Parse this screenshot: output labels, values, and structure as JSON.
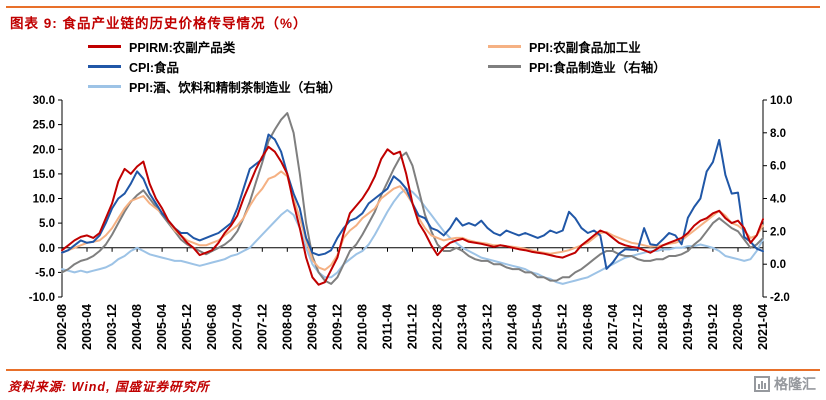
{
  "header": {
    "title": "图表 9: 食品产业链的历史价格传导情况（%）"
  },
  "footer": {
    "source": "资料来源: Wind, 国盛证券研究所",
    "logo_text": "格隆汇"
  },
  "colors": {
    "accent_rule": "#e8702a",
    "title_red": "#c00000",
    "logo_gray": "#96999e"
  },
  "chart_data": {
    "type": "line",
    "title": "图表 9: 食品产业链的历史价格传导情况（%）",
    "legend_position": "top",
    "grid": "off",
    "x_start": "2002-08",
    "x_end": "2021-04",
    "x_step_months": 2,
    "x_tick_labels": [
      "2002-08",
      "2003-04",
      "2003-12",
      "2004-08",
      "2005-04",
      "2005-12",
      "2006-08",
      "2007-04",
      "2007-12",
      "2008-08",
      "2009-04",
      "2009-12",
      "2010-08",
      "2011-04",
      "2011-12",
      "2012-08",
      "2013-04",
      "2013-12",
      "2014-08",
      "2015-04",
      "2015-12",
      "2016-08",
      "2017-04",
      "2017-12",
      "2018-08",
      "2019-04",
      "2019-12",
      "2020-08",
      "2021-04"
    ],
    "left_axis": {
      "min": -10,
      "max": 30,
      "ticks": [
        "30.0",
        "25.0",
        "20.0",
        "15.0",
        "10.0",
        "5.0",
        "0.0",
        "-5.0",
        "-10.0"
      ]
    },
    "right_axis": {
      "min": -2,
      "max": 10,
      "ticks": [
        "10.0",
        "8.0",
        "6.0",
        "4.0",
        "2.0",
        "0.0",
        "-2.0"
      ]
    },
    "series": [
      {
        "name": "PPIRM:农副产品类",
        "axis": "left",
        "color": "#c00000",
        "values": [
          -0.5,
          0.5,
          1.5,
          2.2,
          2.5,
          2.0,
          3.0,
          6.0,
          9.0,
          13.5,
          16.0,
          15.0,
          16.5,
          17.5,
          13.0,
          10.0,
          8.0,
          5.5,
          4.0,
          2.5,
          1.0,
          0.0,
          -1.5,
          -1.0,
          -0.5,
          1.0,
          3.0,
          4.5,
          6.5,
          10.0,
          13.0,
          16.0,
          18.5,
          20.5,
          19.5,
          17.5,
          15.0,
          9.0,
          4.0,
          -2.0,
          -6.0,
          -7.5,
          -7.0,
          -4.5,
          -2.0,
          3.0,
          7.0,
          8.5,
          10.0,
          12.0,
          14.5,
          18.0,
          20.0,
          19.0,
          19.5,
          15.0,
          9.0,
          5.0,
          3.0,
          0.5,
          -1.5,
          0.0,
          1.0,
          1.5,
          1.8,
          1.2,
          1.0,
          0.8,
          0.5,
          0.2,
          0.5,
          0.3,
          0.0,
          -0.3,
          -0.5,
          -0.8,
          -1.0,
          -1.2,
          -1.5,
          -1.8,
          -2.0,
          -1.5,
          -1.0,
          0.5,
          1.5,
          2.5,
          3.5,
          3.0,
          2.0,
          1.0,
          0.5,
          0.2,
          0.0,
          -0.5,
          -1.0,
          -0.3,
          0.5,
          1.0,
          1.5,
          2.0,
          3.0,
          4.5,
          5.5,
          6.0,
          7.0,
          7.5,
          6.0,
          5.0,
          5.5,
          4.0,
          1.0,
          2.5,
          5.8
        ]
      },
      {
        "name": "PPI:农副食品加工业",
        "axis": "left",
        "color": "#f5b183",
        "values": [
          -1.0,
          -0.5,
          0.0,
          0.5,
          1.0,
          1.2,
          1.5,
          2.5,
          4.0,
          6.0,
          8.0,
          9.5,
          10.0,
          10.5,
          9.0,
          8.0,
          7.0,
          5.5,
          3.5,
          2.5,
          1.5,
          1.0,
          0.5,
          0.5,
          1.0,
          1.5,
          2.5,
          3.5,
          4.5,
          6.0,
          8.5,
          10.5,
          12.0,
          14.0,
          14.5,
          15.5,
          14.5,
          10.0,
          6.0,
          1.5,
          -2.5,
          -4.0,
          -4.5,
          -3.5,
          -1.5,
          2.0,
          3.5,
          4.5,
          6.0,
          7.0,
          8.0,
          10.0,
          11.0,
          12.0,
          12.5,
          11.0,
          9.0,
          6.0,
          4.0,
          2.5,
          2.0,
          1.5,
          1.8,
          2.0,
          2.0,
          1.5,
          1.2,
          1.0,
          0.8,
          0.5,
          0.5,
          0.3,
          0.2,
          0.0,
          -0.2,
          -0.5,
          -0.8,
          -1.0,
          -1.2,
          -1.0,
          -0.8,
          -0.5,
          0.0,
          0.5,
          1.0,
          2.0,
          3.0,
          3.2,
          2.5,
          2.0,
          1.5,
          1.0,
          0.8,
          0.5,
          0.2,
          0.3,
          0.5,
          0.8,
          1.0,
          1.5,
          2.5,
          3.5,
          4.5,
          5.5,
          6.5,
          7.5,
          6.5,
          5.0,
          4.5,
          3.5,
          2.0,
          2.5,
          4.5
        ]
      },
      {
        "name": "CPI:食品",
        "axis": "left",
        "color": "#2057a7",
        "values": [
          -1.0,
          -0.5,
          0.5,
          1.5,
          1.0,
          1.2,
          2.5,
          5.0,
          8.0,
          10.0,
          11.0,
          13.0,
          15.5,
          14.0,
          11.0,
          9.0,
          7.0,
          5.5,
          4.0,
          3.0,
          3.0,
          2.0,
          1.5,
          2.0,
          2.5,
          3.0,
          4.0,
          5.0,
          8.0,
          12.0,
          16.0,
          17.0,
          18.0,
          23.0,
          22.0,
          19.5,
          15.0,
          11.0,
          8.0,
          2.0,
          -1.0,
          -1.5,
          -1.2,
          -0.5,
          2.0,
          4.0,
          5.5,
          6.0,
          7.0,
          9.0,
          10.0,
          11.0,
          12.0,
          14.5,
          13.5,
          12.0,
          9.0,
          6.5,
          6.0,
          4.0,
          3.5,
          2.5,
          4.0,
          6.0,
          4.5,
          5.0,
          4.5,
          5.5,
          4.0,
          3.0,
          2.5,
          3.5,
          3.0,
          2.5,
          3.0,
          2.5,
          2.0,
          2.5,
          3.5,
          3.0,
          3.5,
          7.3,
          6.0,
          4.0,
          3.0,
          3.5,
          2.5,
          -4.3,
          -3.0,
          -1.2,
          -0.3,
          -0.4,
          -0.4,
          4.0,
          0.7,
          0.5,
          1.7,
          3.0,
          2.5,
          0.7,
          6.1,
          8.3,
          10.0,
          15.5,
          17.4,
          21.9,
          14.8,
          11.0,
          11.2,
          2.2,
          1.2,
          -0.2,
          -0.7
        ]
      },
      {
        "name": "PPI:食品制造业（右轴）",
        "axis": "right",
        "color": "#7f7f7f",
        "values": [
          -0.5,
          -0.3,
          0.0,
          0.2,
          0.3,
          0.5,
          0.8,
          1.2,
          1.8,
          2.5,
          3.2,
          3.8,
          4.2,
          4.5,
          4.0,
          3.5,
          3.0,
          2.5,
          2.0,
          1.5,
          1.2,
          1.0,
          0.8,
          0.6,
          0.8,
          1.0,
          1.2,
          1.5,
          2.0,
          2.8,
          3.8,
          5.0,
          6.2,
          7.5,
          8.2,
          8.8,
          9.2,
          8.0,
          5.5,
          2.5,
          0.5,
          -0.5,
          -1.0,
          -1.2,
          -0.8,
          0.0,
          0.8,
          1.2,
          1.8,
          2.5,
          3.2,
          4.2,
          5.0,
          5.8,
          6.5,
          6.8,
          6.0,
          4.5,
          3.0,
          2.0,
          1.2,
          0.8,
          0.8,
          1.0,
          0.8,
          0.5,
          0.3,
          0.2,
          0.2,
          0.0,
          0.0,
          -0.2,
          -0.3,
          -0.3,
          -0.5,
          -0.5,
          -0.8,
          -0.8,
          -1.0,
          -1.0,
          -0.8,
          -0.8,
          -0.5,
          -0.3,
          0.0,
          0.3,
          0.6,
          0.8,
          0.8,
          0.6,
          0.5,
          0.5,
          0.3,
          0.2,
          0.2,
          0.3,
          0.3,
          0.5,
          0.5,
          0.6,
          0.8,
          1.2,
          1.5,
          2.0,
          2.5,
          2.8,
          2.5,
          2.2,
          2.0,
          1.5,
          1.0,
          1.2,
          1.6
        ]
      },
      {
        "name": "PPI:酒、饮料和精制茶制造业（右轴）",
        "axis": "right",
        "color": "#9dc3e6",
        "values": [
          -0.3,
          -0.4,
          -0.5,
          -0.4,
          -0.5,
          -0.4,
          -0.3,
          -0.2,
          0.0,
          0.3,
          0.5,
          0.8,
          1.0,
          0.8,
          0.6,
          0.5,
          0.4,
          0.3,
          0.2,
          0.2,
          0.1,
          0.0,
          -0.1,
          0.0,
          0.1,
          0.2,
          0.3,
          0.5,
          0.6,
          0.8,
          1.0,
          1.4,
          1.8,
          2.2,
          2.6,
          3.0,
          3.3,
          3.0,
          2.2,
          1.0,
          0.0,
          -0.5,
          -0.8,
          -0.8,
          -0.5,
          0.0,
          0.3,
          0.6,
          0.8,
          1.2,
          1.8,
          2.5,
          3.2,
          3.8,
          4.3,
          4.6,
          4.4,
          4.0,
          3.5,
          3.0,
          2.5,
          2.0,
          1.6,
          1.3,
          1.0,
          0.8,
          0.6,
          0.4,
          0.3,
          0.2,
          0.1,
          0.0,
          -0.1,
          -0.2,
          -0.3,
          -0.5,
          -0.6,
          -0.8,
          -0.9,
          -1.1,
          -1.2,
          -1.1,
          -1.0,
          -0.9,
          -0.8,
          -0.6,
          -0.4,
          -0.2,
          0.0,
          0.2,
          0.4,
          0.5,
          0.6,
          0.7,
          0.8,
          0.8,
          0.9,
          0.9,
          1.0,
          1.0,
          1.1,
          1.1,
          1.2,
          1.1,
          1.0,
          0.8,
          0.5,
          0.4,
          0.3,
          0.2,
          0.3,
          0.8,
          1.5
        ]
      }
    ]
  }
}
